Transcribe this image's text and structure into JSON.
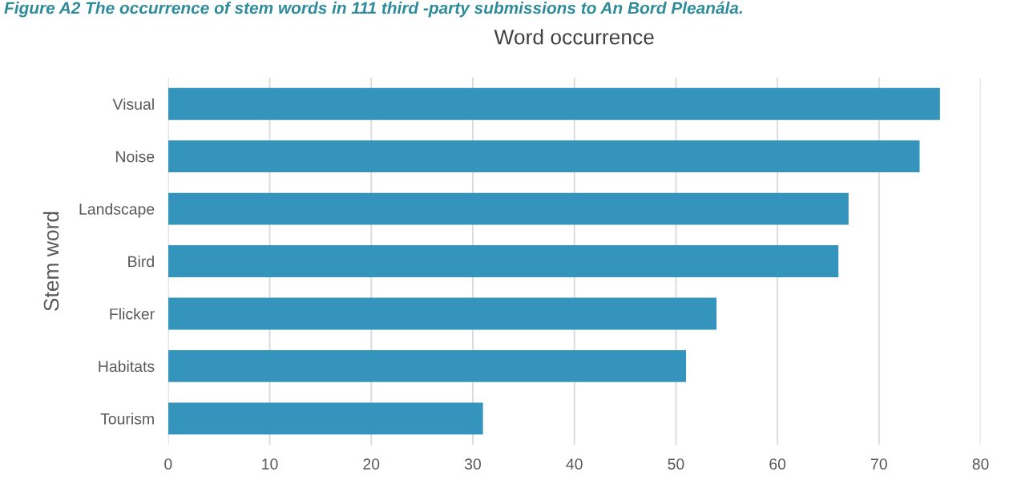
{
  "chart_data": {
    "type": "bar",
    "orientation": "horizontal",
    "title": "Word occurrence",
    "ylabel": "Stem word",
    "annotations": [
      "Figure A2 The occurrence of stem words in 111 third -party submissions to An Bord Pleanála."
    ],
    "categories": [
      "Visual",
      "Noise",
      "Landscape",
      "Bird",
      "Flicker",
      "Habitats",
      "Tourism"
    ],
    "values": [
      76,
      74,
      67,
      66,
      54,
      51,
      31
    ],
    "color": "#3594bb",
    "xlim": [
      0,
      80
    ],
    "xticks": [
      0,
      10,
      20,
      30,
      40,
      50,
      60,
      70,
      80
    ],
    "grid": "x",
    "legend": false
  }
}
